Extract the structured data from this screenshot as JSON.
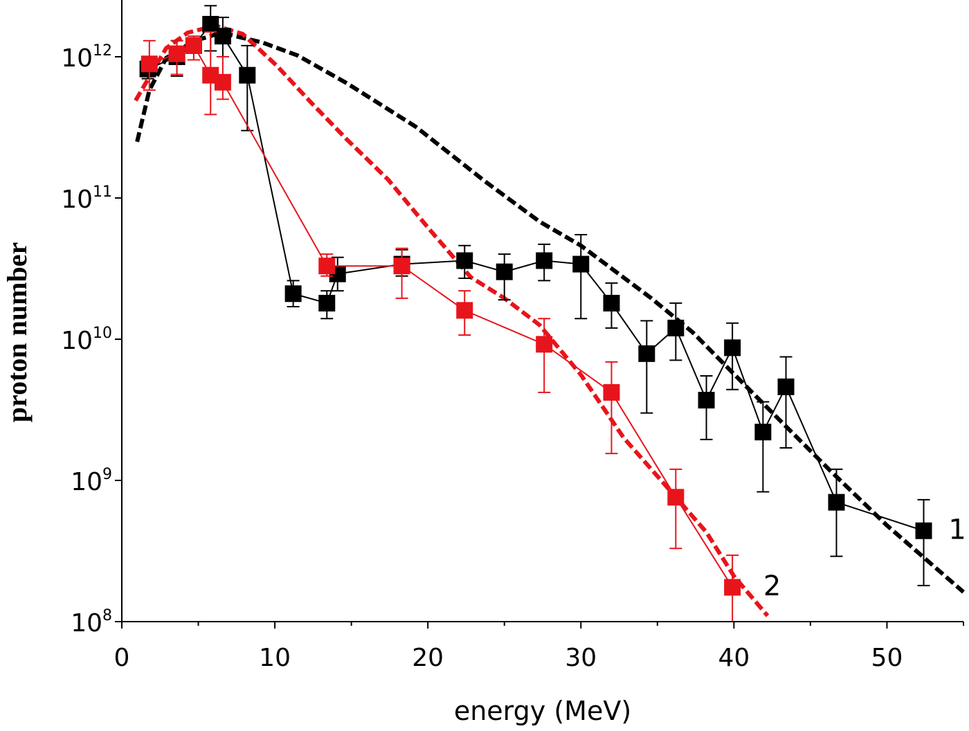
{
  "chart_data": {
    "type": "scatter",
    "title": "",
    "xlabel": "energy (MeV)",
    "ylabel": "proton number",
    "xlim": [
      0,
      55
    ],
    "ylim": [
      100000000.0,
      2500000000000.0
    ],
    "yscale": "log",
    "grid": false,
    "x_ticks": [
      "0",
      "10",
      "20",
      "30",
      "40",
      "50"
    ],
    "y_ticks": [
      {
        "base": "10",
        "exp": "8"
      },
      {
        "base": "10",
        "exp": "9"
      },
      {
        "base": "10",
        "exp": "10"
      },
      {
        "base": "10",
        "exp": "11"
      },
      {
        "base": "10",
        "exp": "12"
      }
    ],
    "annotations": [
      {
        "text": "1",
        "x": 54.6,
        "y": 450000000.0
      },
      {
        "text": "2",
        "x": 42.5,
        "y": 180000000.0
      }
    ],
    "series": [
      {
        "color": "#000000",
        "style": "markers-line-errorbars",
        "points": [
          {
            "x": 1.7,
            "y": 820000000000.0,
            "lo": 700000000000.0,
            "hi": 950000000000.0
          },
          {
            "x": 3.6,
            "y": 1000000000000.0,
            "lo": 730000000000.0,
            "hi": 1300000000000.0
          },
          {
            "x": 4.7,
            "y": 1200000000000.0,
            "lo": 950000000000.0,
            "hi": 1300000000000.0
          },
          {
            "x": 5.8,
            "y": 1700000000000.0,
            "lo": 1100000000000.0,
            "hi": 2300000000000.0
          },
          {
            "x": 6.6,
            "y": 1400000000000.0,
            "lo": 1000000000000.0,
            "hi": 1900000000000.0
          },
          {
            "x": 8.2,
            "y": 740000000000.0,
            "lo": 300000000000.0,
            "hi": 1200000000000.0
          },
          {
            "x": 11.2,
            "y": 21000000000.0,
            "lo": 17000000000.0,
            "hi": 26000000000.0
          },
          {
            "x": 13.4,
            "y": 18000000000.0,
            "lo": 14000000000.0,
            "hi": 22000000000.0
          },
          {
            "x": 14.1,
            "y": 29000000000.0,
            "lo": 22000000000.0,
            "hi": 38000000000.0
          },
          {
            "x": 18.3,
            "y": 34000000000.0,
            "lo": 28000000000.0,
            "hi": 43000000000.0
          },
          {
            "x": 22.4,
            "y": 36000000000.0,
            "lo": 27000000000.0,
            "hi": 46000000000.0
          },
          {
            "x": 25.0,
            "y": 30000000000.0,
            "lo": 19000000000.0,
            "hi": 40000000000.0
          },
          {
            "x": 27.6,
            "y": 36000000000.0,
            "lo": 26000000000.0,
            "hi": 47000000000.0
          },
          {
            "x": 30.0,
            "y": 34000000000.0,
            "lo": 14000000000.0,
            "hi": 55000000000.0
          },
          {
            "x": 32.0,
            "y": 18000000000.0,
            "lo": 12000000000.0,
            "hi": 25000000000.0
          },
          {
            "x": 34.3,
            "y": 7900000000.0,
            "lo": 3000000000.0,
            "hi": 13500000000.0
          },
          {
            "x": 36.2,
            "y": 12000000000.0,
            "lo": 7100000000.0,
            "hi": 18000000000.0
          },
          {
            "x": 38.2,
            "y": 3700000000.0,
            "lo": 1950000000.0,
            "hi": 5500000000.0
          },
          {
            "x": 39.9,
            "y": 8700000000.0,
            "lo": 4400000000.0,
            "hi": 13000000000.0
          },
          {
            "x": 41.9,
            "y": 2200000000.0,
            "lo": 830000000.0,
            "hi": 3600000000.0
          },
          {
            "x": 43.4,
            "y": 4600000000.0,
            "lo": 1700000000.0,
            "hi": 7500000000.0
          },
          {
            "x": 46.7,
            "y": 700000000.0,
            "lo": 290000000.0,
            "hi": 1200000000.0
          },
          {
            "x": 52.4,
            "y": 440000000.0,
            "lo": 180000000.0,
            "hi": 730000000.0
          }
        ]
      },
      {
        "color": "#e8141b",
        "style": "markers-line-errorbars",
        "points": [
          {
            "x": 1.8,
            "y": 890000000000.0,
            "lo": 580000000000.0,
            "hi": 1300000000000.0
          },
          {
            "x": 3.6,
            "y": 1050000000000.0,
            "lo": 750000000000.0,
            "hi": 1300000000000.0
          },
          {
            "x": 4.7,
            "y": 1200000000000.0,
            "lo": 950000000000.0,
            "hi": 1400000000000.0
          },
          {
            "x": 5.8,
            "y": 740000000000.0,
            "lo": 390000000000.0,
            "hi": 1500000000000.0
          },
          {
            "x": 6.6,
            "y": 660000000000.0,
            "lo": 500000000000.0,
            "hi": 1000000000000.0
          },
          {
            "x": 13.4,
            "y": 33000000000.0,
            "lo": 28000000000.0,
            "hi": 40000000000.0
          },
          {
            "x": 18.3,
            "y": 33000000000.0,
            "lo": 19500000000.0,
            "hi": 44000000000.0
          },
          {
            "x": 22.4,
            "y": 16000000000.0,
            "lo": 10700000000.0,
            "hi": 22000000000.0
          },
          {
            "x": 27.6,
            "y": 9200000000.0,
            "lo": 4200000000.0,
            "hi": 14000000000.0
          },
          {
            "x": 32.0,
            "y": 4200000000.0,
            "lo": 1550000000.0,
            "hi": 6900000000.0
          },
          {
            "x": 36.2,
            "y": 760000000.0,
            "lo": 330000000.0,
            "hi": 1200000000.0
          },
          {
            "x": 39.9,
            "y": 175000000.0,
            "lo": 100000000.0,
            "hi": 295000000.0
          }
        ]
      },
      {
        "color": "#000000",
        "style": "dashed-fit",
        "x": [
          1.0,
          1.8,
          2.9,
          4.7,
          6.5,
          9.2,
          11.5,
          14.7,
          19.2,
          23.7,
          27.3,
          30,
          34.6,
          37.3,
          41.8,
          46.3,
          50,
          55
        ],
        "y": [
          250000000000.0,
          580000000000.0,
          980000000000.0,
          1290000000000.0,
          1480000000000.0,
          1260000000000.0,
          1020000000000.0,
          650000000000.0,
          320000000000.0,
          132000000000.0,
          68000000000.0,
          46000000000.0,
          19500000000.0,
          11200000000.0,
          3600000000.0,
          1170000000.0,
          480000000.0,
          162000000.0
        ]
      },
      {
        "color": "#e8141b",
        "style": "dashed-fit",
        "x": [
          0.9,
          1.8,
          2.9,
          4.3,
          6.1,
          7.9,
          10.1,
          12.4,
          14.7,
          17.4,
          20.1,
          22.8,
          25,
          27.3,
          30,
          32.8,
          35.5,
          38.2,
          40,
          42.2
        ],
        "y": [
          490000000000.0,
          720000000000.0,
          1150000000000.0,
          1480000000000.0,
          1660000000000.0,
          1450000000000.0,
          870000000000.0,
          470000000000.0,
          260000000000.0,
          135000000000.0,
          60000000000.0,
          27500000000.0,
          19500000000.0,
          12600000000.0,
          5600000000.0,
          2000000000.0,
          930000000.0,
          430000000.0,
          210000000.0,
          110000000.0
        ]
      }
    ]
  }
}
